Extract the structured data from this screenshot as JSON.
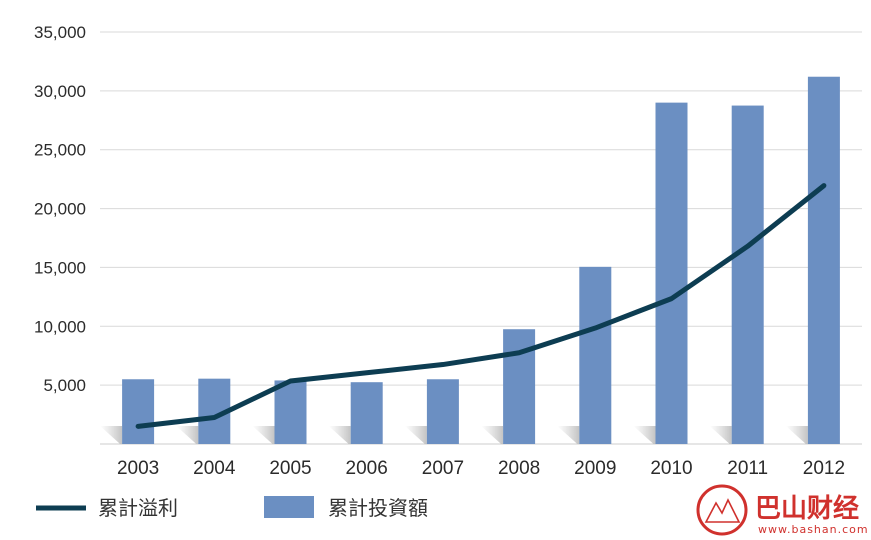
{
  "chart_data": {
    "type": "bar",
    "categories": [
      "2003",
      "2004",
      "2005",
      "2006",
      "2007",
      "2008",
      "2009",
      "2010",
      "2011",
      "2012"
    ],
    "series": [
      {
        "name": "累計投資額",
        "type": "bar",
        "values": [
          5500,
          5550,
          5400,
          5250,
          5500,
          9750,
          15050,
          29000,
          28750,
          31200
        ]
      },
      {
        "name": "累計溢利",
        "type": "line",
        "values": [
          1500,
          2250,
          5350,
          6050,
          6750,
          7750,
          9850,
          12350,
          16800,
          21950
        ]
      }
    ],
    "ylim": [
      0,
      35000
    ],
    "yticks": [
      5000,
      10000,
      15000,
      20000,
      25000,
      30000,
      35000
    ],
    "ytick_labels": [
      "5,000",
      "10,000",
      "15,000",
      "20,000",
      "25,000",
      "30,000",
      "35,000"
    ],
    "grid": true,
    "legend_position": "bottom-left",
    "colors": {
      "bar": "#6b8fc2",
      "line": "#0d3d52",
      "grid": "#d9d9d9",
      "axis": "#cccccc"
    }
  },
  "legend": {
    "line_label": "累計溢利",
    "bar_label": "累計投資額"
  },
  "watermark": {
    "title": "巴山财经",
    "url": "www.bashan.com"
  }
}
